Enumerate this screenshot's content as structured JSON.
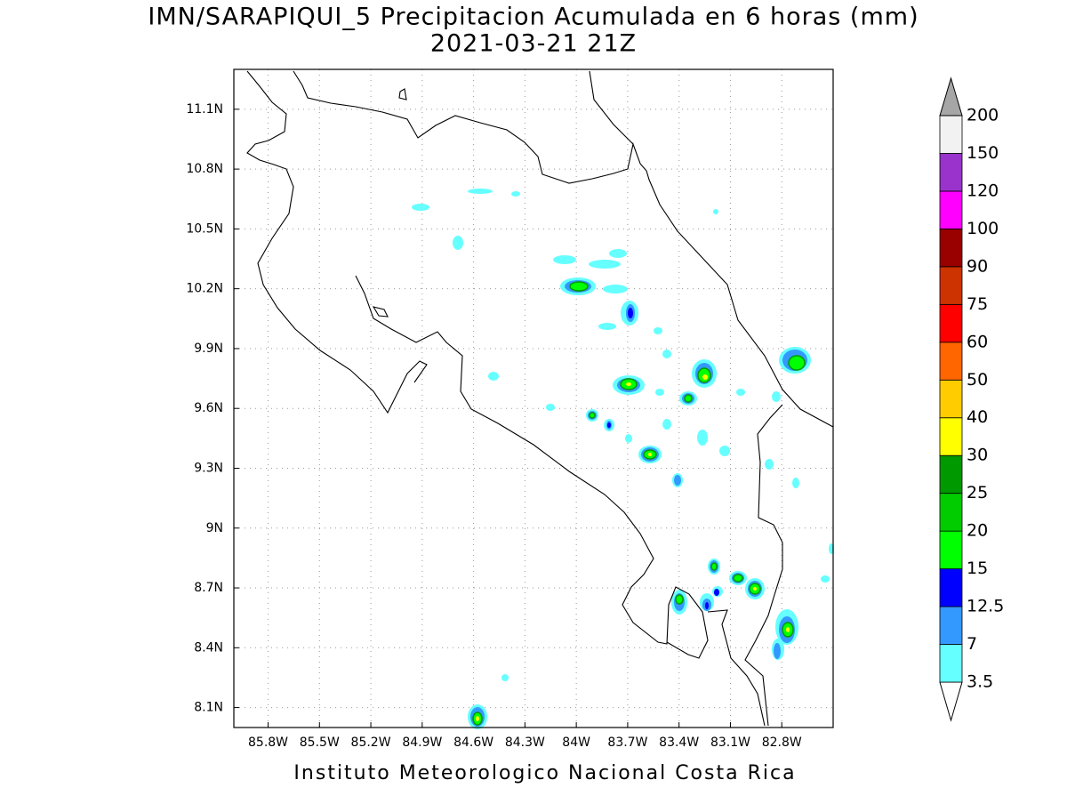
{
  "map": {
    "title": "IMN/SARAPIQUI_5 Precipitacion Acumulada en 6 horas (mm)",
    "subtitle": "2021-03-21 21Z",
    "xlim": [
      -86,
      -82.5
    ],
    "ylim": [
      8,
      11.3
    ],
    "xticks": [
      {
        "value": -85.8,
        "label": "85.8W"
      },
      {
        "value": -85.5,
        "label": "85.5W"
      },
      {
        "value": -85.2,
        "label": "85.2W"
      },
      {
        "value": -84.9,
        "label": "84.9W"
      },
      {
        "value": -84.6,
        "label": "84.6W"
      },
      {
        "value": -84.3,
        "label": "84.3W"
      },
      {
        "value": -84.0,
        "label": "84W"
      },
      {
        "value": -83.7,
        "label": "83.7W"
      },
      {
        "value": -83.4,
        "label": "83.4W"
      },
      {
        "value": -83.1,
        "label": "83.1W"
      },
      {
        "value": -82.8,
        "label": "82.8W"
      }
    ],
    "yticks": [
      {
        "value": 8.1,
        "label": "8.1N"
      },
      {
        "value": 8.4,
        "label": "8.4N"
      },
      {
        "value": 8.7,
        "label": "8.7N"
      },
      {
        "value": 9.0,
        "label": "9N"
      },
      {
        "value": 9.3,
        "label": "9.3N"
      },
      {
        "value": 9.6,
        "label": "9.6N"
      },
      {
        "value": 9.9,
        "label": "9.9N"
      },
      {
        "value": 10.2,
        "label": "10.2N"
      },
      {
        "value": 10.5,
        "label": "10.5N"
      },
      {
        "value": 10.8,
        "label": "10.8N"
      },
      {
        "value": 11.1,
        "label": "11.1N"
      }
    ],
    "footer": "Instituto Meteorologico Nacional Costa Rica"
  },
  "colorbar": {
    "levels": [
      3.5,
      7,
      12.5,
      15,
      20,
      25,
      30,
      40,
      50,
      60,
      75,
      90,
      100,
      120,
      150,
      200
    ],
    "colors": [
      "#ffffff",
      "#66ffff",
      "#3399ff",
      "#0000ff",
      "#00ff00",
      "#00cc00",
      "#009900",
      "#ffff00",
      "#ffcc00",
      "#ff6600",
      "#ff0000",
      "#cc3300",
      "#990000",
      "#ff00ff",
      "#9933cc",
      "#f2f2f2",
      "#a6a6a6"
    ]
  }
}
